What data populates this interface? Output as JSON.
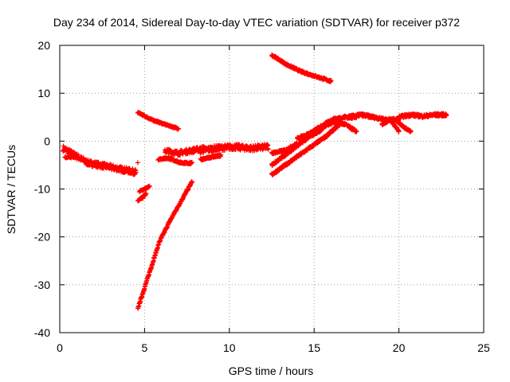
{
  "chart_data": {
    "type": "scatter",
    "title": "Day 234 of 2014, Sidereal Day-to-day VTEC variation (SDTVAR) for receiver p372",
    "xlabel": "GPS time / hours",
    "ylabel": "SDTVAR / TECUs",
    "xlim": [
      0,
      25
    ],
    "ylim": [
      -40,
      20
    ],
    "xticks": [
      0,
      5,
      10,
      15,
      20,
      25
    ],
    "yticks": [
      -40,
      -30,
      -20,
      -10,
      0,
      10,
      20
    ],
    "grid": true,
    "marker": "plus",
    "colors": {
      "series": "#ff0000"
    },
    "series": [
      {
        "segments": [
          {
            "x0": 0.2,
            "x1": 4.5,
            "y": [
              -1.5,
              -3.0,
              -4.5,
              -5.0,
              -5.5,
              -6.0,
              -6.5
            ],
            "spread": 1.2
          },
          {
            "x0": 0.3,
            "x1": 1.0,
            "y": [
              -3.5,
              -3.2
            ],
            "spread": 0.4
          },
          {
            "x0": 4.6,
            "x1": 5.1,
            "y": [
              -12.5,
              -11.0
            ],
            "spread": 0.3
          },
          {
            "x0": 4.7,
            "x1": 5.3,
            "y": [
              -10.5,
              -9.5
            ],
            "spread": 0.3
          },
          {
            "x0": 4.6,
            "x1": 7.8,
            "y": [
              -35.0,
              -28.0,
              -21.0,
              -16.5,
              -12.5,
              -8.5
            ],
            "spread": 0.4
          },
          {
            "x0": 4.6,
            "x1": 7.0,
            "y": [
              6.0,
              4.5,
              3.5,
              2.6
            ],
            "spread": 0.3
          },
          {
            "x0": 5.8,
            "x1": 7.8,
            "y": [
              -3.8,
              -3.6,
              -4.5,
              -4.6
            ],
            "spread": 0.4
          },
          {
            "x0": 6.2,
            "x1": 8.5,
            "y": [
              -2.0,
              -2.5,
              -2.0,
              -1.5
            ],
            "spread": 1.0
          },
          {
            "x0": 8.2,
            "x1": 12.3,
            "y": [
              -2.0,
              -1.5,
              -1.2,
              -1.5,
              -1.2
            ],
            "spread": 1.2
          },
          {
            "x0": 8.3,
            "x1": 9.5,
            "y": [
              -3.8,
              -3.0
            ],
            "spread": 0.4
          },
          {
            "x0": 12.5,
            "x1": 16.0,
            "y": [
              18.0,
              16.0,
              14.5,
              13.5,
              12.5
            ],
            "spread": 0.4
          },
          {
            "x0": 12.5,
            "x1": 16.5,
            "y": [
              -7.0,
              -5.0,
              -3.0,
              -1.0,
              1.0,
              3.5
            ],
            "spread": 0.5
          },
          {
            "x0": 12.5,
            "x1": 15.5,
            "y": [
              -5.0,
              -3.0,
              -1.0,
              1.0,
              2.5
            ],
            "spread": 0.5
          },
          {
            "x0": 12.5,
            "x1": 14.0,
            "y": [
              -2.5,
              -2.0,
              -0.5
            ],
            "spread": 0.5
          },
          {
            "x0": 14.0,
            "x1": 17.5,
            "y": [
              0.5,
              1.5,
              3.0,
              4.5,
              5.0,
              5.0
            ],
            "spread": 0.6
          },
          {
            "x0": 15.5,
            "x1": 17.5,
            "y": [
              3.0,
              4.0,
              3.5,
              2.0
            ],
            "spread": 0.5
          },
          {
            "x0": 17.0,
            "x1": 20.0,
            "y": [
              5.0,
              5.5,
              5.0,
              4.5,
              4.5
            ],
            "spread": 0.6
          },
          {
            "x0": 19.0,
            "x1": 20.0,
            "y": [
              3.5,
              4.5,
              2.0
            ],
            "spread": 0.4
          },
          {
            "x0": 19.8,
            "x1": 20.7,
            "y": [
              4.5,
              3.0,
              2.0
            ],
            "spread": 0.4
          },
          {
            "x0": 20.0,
            "x1": 22.8,
            "y": [
              5.0,
              5.5,
              5.2,
              5.5,
              5.5
            ],
            "spread": 0.6
          }
        ],
        "points": [
          {
            "x": 0.2,
            "y": -2.0
          },
          {
            "x": 4.6,
            "y": -4.5
          },
          {
            "x": 4.9,
            "y": -12.0
          },
          {
            "x": 12.0,
            "y": -1.5
          },
          {
            "x": 22.8,
            "y": 5.5
          }
        ]
      }
    ]
  }
}
